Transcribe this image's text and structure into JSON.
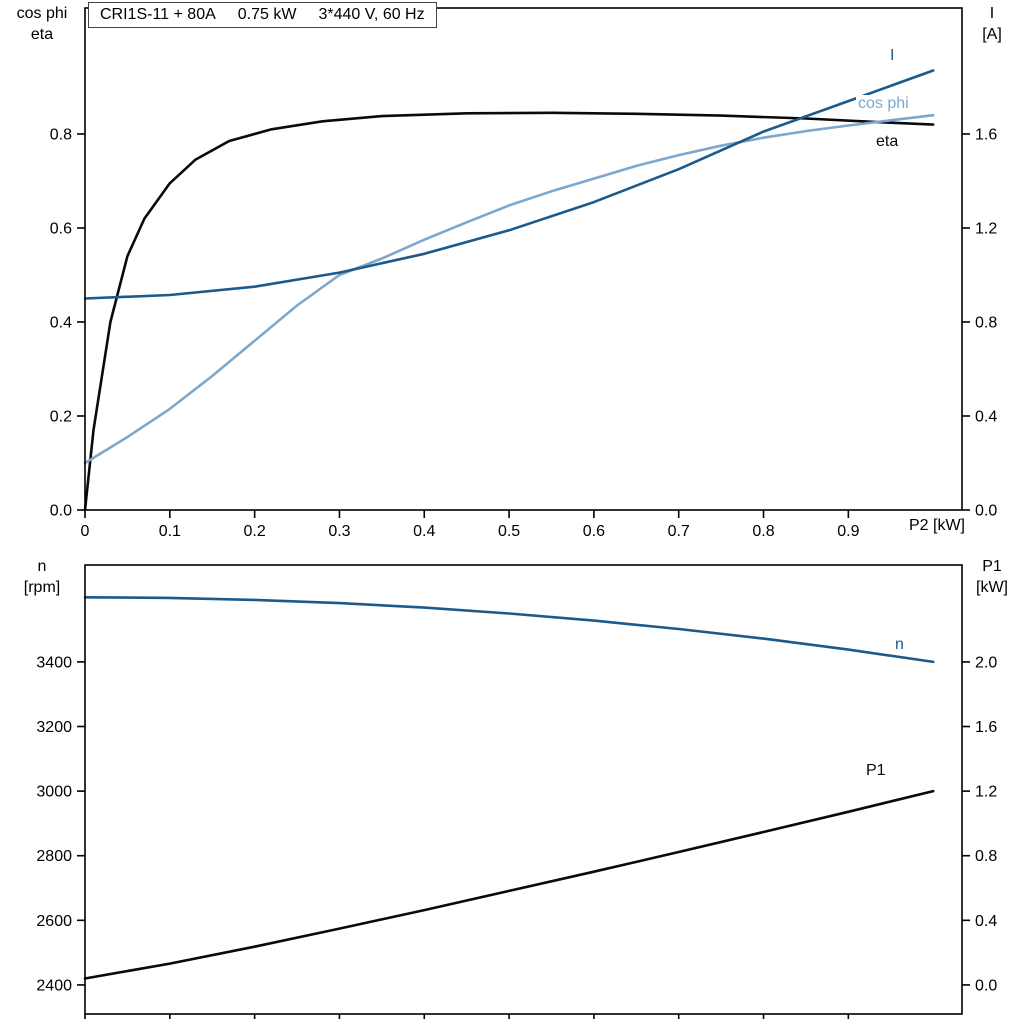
{
  "title_parts": [
    "CRI1S-11 + 80A",
    "0.75 kW",
    "3*440 V, 60 Hz"
  ],
  "colors": {
    "dark_blue": "#1c5a8c",
    "light_blue": "#7da7cd",
    "black": "#0a0a0a"
  },
  "chart_data": [
    {
      "type": "line",
      "title": "CRI1S-11 + 80A   0.75 kW   3*440 V, 60 Hz",
      "xlabel": "P2 [kW]",
      "grid": false,
      "x_axis": {
        "lim": [
          0,
          1.034
        ],
        "ticks": [
          {
            "v": 0,
            "label": "0"
          },
          {
            "v": 0.1,
            "label": "0.1"
          },
          {
            "v": 0.2,
            "label": "0.2"
          },
          {
            "v": 0.3,
            "label": "0.3"
          },
          {
            "v": 0.4,
            "label": "0.4"
          },
          {
            "v": 0.5,
            "label": "0.5"
          },
          {
            "v": 0.6,
            "label": "0.6"
          },
          {
            "v": 0.7,
            "label": "0.7"
          },
          {
            "v": 0.8,
            "label": "0.8"
          },
          {
            "v": 0.9,
            "label": "0.9"
          }
        ]
      },
      "left_axis": {
        "title_lines": [
          "cos phi",
          "eta"
        ],
        "lim": [
          0,
          1.068
        ],
        "ticks": [
          {
            "v": 0.0,
            "label": "0.0"
          },
          {
            "v": 0.2,
            "label": "0.2"
          },
          {
            "v": 0.4,
            "label": "0.4"
          },
          {
            "v": 0.6,
            "label": "0.6"
          },
          {
            "v": 0.8,
            "label": "0.8"
          }
        ]
      },
      "right_axis": {
        "title_lines": [
          "I",
          "[A]"
        ],
        "lim": [
          0,
          2.136
        ],
        "ticks": [
          {
            "v": 0.0,
            "label": "0.0"
          },
          {
            "v": 0.4,
            "label": "0.4"
          },
          {
            "v": 0.8,
            "label": "0.8"
          },
          {
            "v": 1.2,
            "label": "1.2"
          },
          {
            "v": 1.6,
            "label": "1.6"
          }
        ]
      },
      "series": [
        {
          "name": "eta",
          "axis": "left",
          "color": "#0a0a0a",
          "x": [
            0,
            0.01,
            0.03,
            0.05,
            0.07,
            0.1,
            0.13,
            0.17,
            0.22,
            0.28,
            0.35,
            0.45,
            0.55,
            0.65,
            0.75,
            0.85,
            0.95,
            1.0
          ],
          "y": [
            0,
            0.17,
            0.4,
            0.54,
            0.62,
            0.695,
            0.745,
            0.785,
            0.81,
            0.827,
            0.838,
            0.844,
            0.845,
            0.843,
            0.839,
            0.833,
            0.824,
            0.82
          ]
        },
        {
          "name": "cos phi",
          "axis": "left",
          "color": "#7da7cd",
          "x": [
            0,
            0.05,
            0.1,
            0.15,
            0.2,
            0.25,
            0.3,
            0.35,
            0.4,
            0.45,
            0.5,
            0.55,
            0.6,
            0.65,
            0.7,
            0.75,
            0.8,
            0.85,
            0.9,
            0.95,
            1.0
          ],
          "y": [
            0.1,
            0.155,
            0.215,
            0.285,
            0.36,
            0.435,
            0.5,
            0.535,
            0.575,
            0.612,
            0.648,
            0.678,
            0.705,
            0.732,
            0.755,
            0.775,
            0.792,
            0.806,
            0.818,
            0.829,
            0.84
          ]
        },
        {
          "name": "I",
          "axis": "right",
          "color": "#1c5a8c",
          "x": [
            0,
            0.1,
            0.2,
            0.3,
            0.4,
            0.5,
            0.6,
            0.7,
            0.8,
            0.9,
            1.0
          ],
          "y": [
            0.9,
            0.915,
            0.95,
            1.01,
            1.09,
            1.19,
            1.31,
            1.45,
            1.61,
            1.74,
            1.87
          ]
        }
      ]
    },
    {
      "type": "line",
      "title": "",
      "xlabel": "",
      "grid": false,
      "x_axis": {
        "lim": [
          0,
          1.034
        ],
        "ticks": [
          {
            "v": 0,
            "label": ""
          },
          {
            "v": 0.1,
            "label": ""
          },
          {
            "v": 0.2,
            "label": ""
          },
          {
            "v": 0.3,
            "label": ""
          },
          {
            "v": 0.4,
            "label": ""
          },
          {
            "v": 0.5,
            "label": ""
          },
          {
            "v": 0.6,
            "label": ""
          },
          {
            "v": 0.7,
            "label": ""
          },
          {
            "v": 0.8,
            "label": ""
          },
          {
            "v": 0.9,
            "label": ""
          }
        ]
      },
      "left_axis": {
        "title_lines": [
          "n",
          "[rpm]"
        ],
        "lim": [
          2310,
          3700
        ],
        "ticks": [
          {
            "v": 2400,
            "label": "2400"
          },
          {
            "v": 2600,
            "label": "2600"
          },
          {
            "v": 2800,
            "label": "2800"
          },
          {
            "v": 3000,
            "label": "3000"
          },
          {
            "v": 3200,
            "label": "3200"
          },
          {
            "v": 3400,
            "label": "3400"
          }
        ]
      },
      "right_axis": {
        "title_lines": [
          "P1",
          "[kW]"
        ],
        "lim": [
          -0.18,
          2.6
        ],
        "ticks": [
          {
            "v": 0.0,
            "label": "0.0"
          },
          {
            "v": 0.4,
            "label": "0.4"
          },
          {
            "v": 0.8,
            "label": "0.8"
          },
          {
            "v": 1.2,
            "label": "1.2"
          },
          {
            "v": 1.6,
            "label": "1.6"
          },
          {
            "v": 2.0,
            "label": "2.0"
          }
        ]
      },
      "series": [
        {
          "name": "n",
          "axis": "left",
          "color": "#1c5a8c",
          "x": [
            0,
            0.1,
            0.2,
            0.3,
            0.4,
            0.5,
            0.6,
            0.7,
            0.8,
            0.9,
            1.0
          ],
          "y": [
            3600,
            3598,
            3592,
            3582,
            3568,
            3550,
            3528,
            3502,
            3472,
            3438,
            3400
          ]
        },
        {
          "name": "P1",
          "axis": "right",
          "color": "#0a0a0a",
          "x": [
            0,
            0.1,
            0.2,
            0.3,
            0.4,
            0.5,
            0.6,
            0.7,
            0.8,
            0.9,
            1.0
          ],
          "y": [
            0.04,
            0.132,
            0.237,
            0.349,
            0.463,
            0.582,
            0.701,
            0.823,
            0.947,
            1.072,
            1.2
          ]
        }
      ]
    }
  ]
}
